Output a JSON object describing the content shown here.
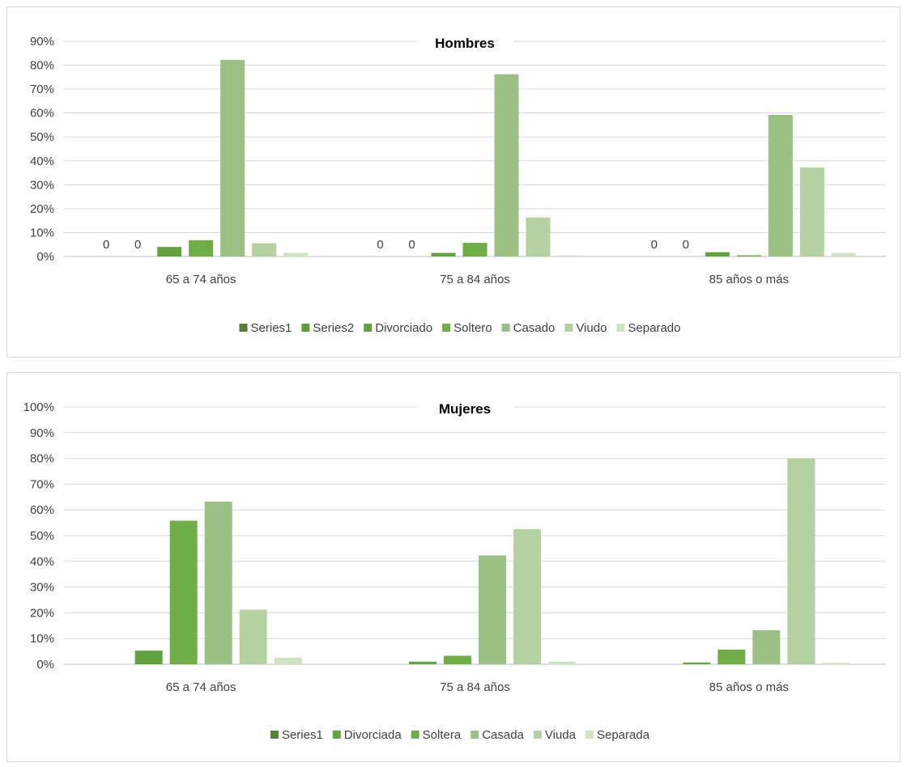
{
  "chart_data": [
    {
      "type": "bar",
      "title": "Hombres",
      "categories": [
        "65 a 74 años",
        "75 a 84 años",
        "85 años o más"
      ],
      "ylim": [
        0,
        0.9
      ],
      "yticks": [
        "0%",
        "10%",
        "20%",
        "30%",
        "40%",
        "50%",
        "60%",
        "70%",
        "80%",
        "90%"
      ],
      "grid": true,
      "legend_position": "bottom",
      "series": [
        {
          "name": "Series1",
          "values": [
            0,
            0,
            0
          ],
          "color": "#548235",
          "data_labels": [
            "0",
            "0",
            "0"
          ]
        },
        {
          "name": "Series2",
          "values": [
            0,
            0,
            0
          ],
          "color": "#5c9e3c",
          "data_labels": [
            "0",
            "0",
            "0"
          ]
        },
        {
          "name": "Divorciado",
          "values": [
            0.04,
            0.015,
            0.018
          ],
          "color": "#62a33f"
        },
        {
          "name": "Soltero",
          "values": [
            0.068,
            0.057,
            0.005
          ],
          "color": "#70ad47"
        },
        {
          "name": "Casado",
          "values": [
            0.822,
            0.762,
            0.592
          ],
          "color": "#9bc083"
        },
        {
          "name": "Viudo",
          "values": [
            0.055,
            0.163,
            0.372
          ],
          "color": "#b4d2a0"
        },
        {
          "name": "Separado",
          "values": [
            0.015,
            0.004,
            0.015
          ],
          "color": "#cfe2c2"
        }
      ]
    },
    {
      "type": "bar",
      "title": "Mujeres",
      "categories": [
        "65 a 74 años",
        "75 a 84 años",
        "85 años o más"
      ],
      "ylim": [
        0,
        1.0
      ],
      "yticks": [
        "0%",
        "10%",
        "20%",
        "30%",
        "40%",
        "50%",
        "60%",
        "70%",
        "80%",
        "90%",
        "100%"
      ],
      "grid": true,
      "legend_position": "bottom",
      "series": [
        {
          "name": "Series1",
          "values": [
            0,
            0,
            0
          ],
          "color": "#548235"
        },
        {
          "name": "Divorciada",
          "values": [
            0.053,
            0.01,
            0.007
          ],
          "color": "#62a33f"
        },
        {
          "name": "Soltera",
          "values": [
            0.558,
            0.033,
            0.057
          ],
          "color": "#70ad47"
        },
        {
          "name": "Casada",
          "values": [
            0.632,
            0.423,
            0.132
          ],
          "color": "#9bc083"
        },
        {
          "name": "Viuda",
          "values": [
            0.212,
            0.525,
            0.8
          ],
          "color": "#b4d2a0"
        },
        {
          "name": "Separada",
          "values": [
            0.025,
            0.01,
            0.005
          ],
          "color": "#cfe2c2"
        }
      ]
    }
  ]
}
